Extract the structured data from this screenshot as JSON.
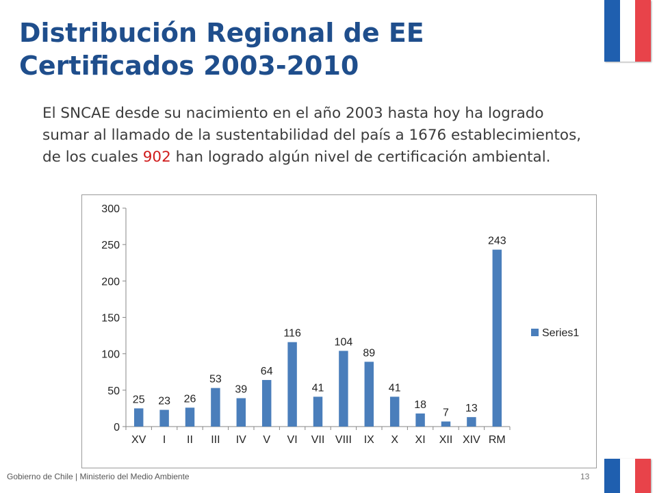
{
  "slide": {
    "title": "Distribución Regional de EE Certificados 2003-2010",
    "body_before": "El SNCAE desde su nacimiento en el año 2003 hasta hoy ha logrado sumar al llamado de la sustentabilidad del país a 1676 establecimientos, de los cuales ",
    "body_highlight": "902",
    "body_after": " han logrado algún nivel de certificación ambiental.",
    "footer": "Gobierno de Chile | Ministerio del Medio Ambiente",
    "page_number": "13"
  },
  "colors": {
    "title": "#1f4e8c",
    "highlight": "#d01c1c",
    "bar": "#4a7ebb",
    "flag_blue": "#1f5faf",
    "flag_white": "#ffffff",
    "flag_red": "#e8434a"
  },
  "chart_data": {
    "type": "bar",
    "categories": [
      "XV",
      "I",
      "II",
      "III",
      "IV",
      "V",
      "VI",
      "VII",
      "VIII",
      "IX",
      "X",
      "XI",
      "XII",
      "XIV",
      "RM"
    ],
    "series": [
      {
        "name": "Series1",
        "values": [
          25,
          23,
          26,
          53,
          39,
          64,
          116,
          41,
          104,
          89,
          41,
          18,
          7,
          13,
          243
        ]
      }
    ],
    "ylim": [
      0,
      300
    ],
    "yticks": [
      0,
      50,
      100,
      150,
      200,
      250,
      300
    ],
    "grid": false,
    "data_labels": true,
    "legend": "right"
  }
}
